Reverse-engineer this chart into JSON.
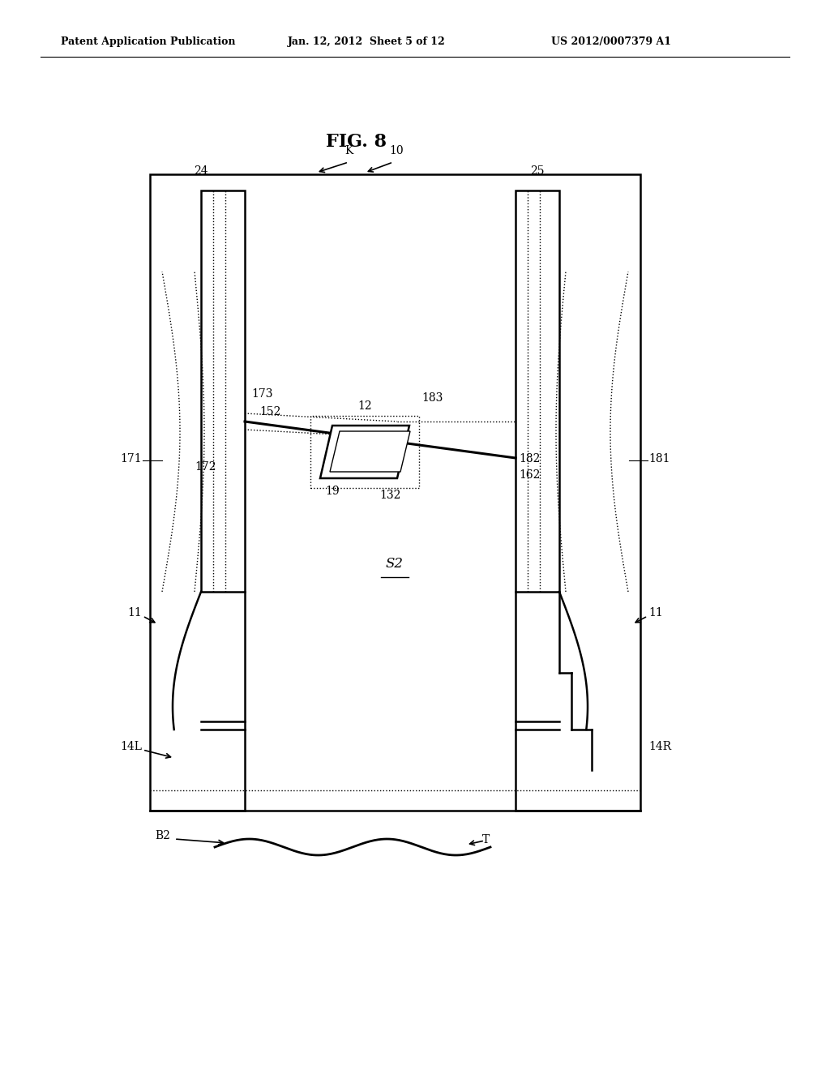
{
  "bg_color": "#ffffff",
  "line_color": "#000000",
  "header_text": "Patent Application Publication",
  "header_date": "Jan. 12, 2012  Sheet 5 of 12",
  "header_patent": "US 2012/0007379 A1",
  "fig_label": "FIG. 8"
}
